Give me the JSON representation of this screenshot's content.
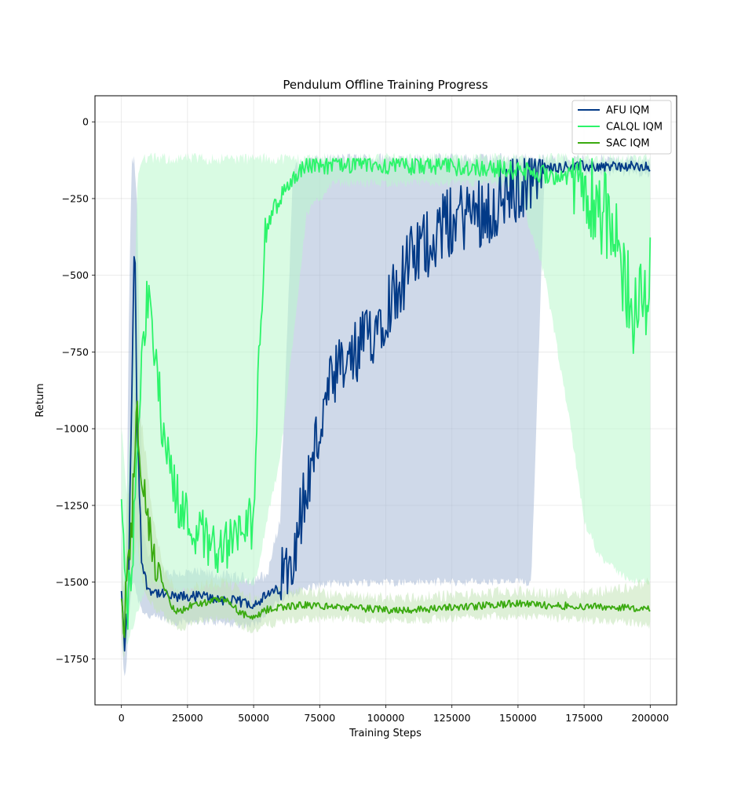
{
  "chart_data": {
    "type": "line",
    "title": "Pendulum Offline Training Progress",
    "xlabel": "Training Steps",
    "ylabel": "Return",
    "xlim": [
      -10000,
      210000
    ],
    "ylim": [
      -1900,
      85
    ],
    "xticks": [
      0,
      25000,
      50000,
      75000,
      100000,
      125000,
      150000,
      175000,
      200000
    ],
    "yticks": [
      0,
      -250,
      -500,
      -750,
      -1000,
      -1250,
      -1500,
      -1750
    ],
    "ytick_labels": [
      "0",
      "−250",
      "−500",
      "−750",
      "−1000",
      "−1250",
      "−1500",
      "−1750"
    ],
    "grid": true,
    "legend_position": "top-right",
    "series": [
      {
        "name": "AFU IQM",
        "color": "#023a87",
        "band_color": "#9fb4d4",
        "x": [
          0,
          1000,
          2000,
          3000,
          4000,
          5000,
          6000,
          8000,
          10000,
          15000,
          20000,
          30000,
          40000,
          50000,
          55000,
          60000,
          65000,
          70000,
          75000,
          80000,
          90000,
          100000,
          110000,
          120000,
          130000,
          140000,
          150000,
          155000,
          160000,
          170000,
          180000,
          190000,
          200000
        ],
        "y": [
          -1550,
          -1710,
          -1650,
          -1400,
          -800,
          -400,
          -1000,
          -1450,
          -1520,
          -1540,
          -1550,
          -1545,
          -1560,
          -1570,
          -1545,
          -1520,
          -1380,
          -1200,
          -1000,
          -850,
          -750,
          -600,
          -450,
          -350,
          -300,
          -280,
          -220,
          -160,
          -150,
          -145,
          -145,
          -145,
          -150
        ],
        "band_low": [
          -1650,
          -1830,
          -1750,
          -1600,
          -1500,
          -1500,
          -1550,
          -1590,
          -1610,
          -1620,
          -1630,
          -1625,
          -1635,
          -1640,
          -1600,
          -1560,
          -1540,
          -1520,
          -1510,
          -1505,
          -1500,
          -1500,
          -1500,
          -1500,
          -1500,
          -1500,
          -1500,
          -1500,
          -170,
          -165,
          -165,
          -165,
          -170
        ],
        "band_high": [
          -1350,
          -1550,
          -1300,
          -500,
          -130,
          -130,
          -300,
          -1300,
          -1420,
          -1460,
          -1470,
          -1470,
          -1480,
          -1490,
          -1480,
          -1300,
          -150,
          -130,
          -125,
          -120,
          -120,
          -120,
          -120,
          -120,
          -120,
          -120,
          -120,
          -120,
          -125,
          -125,
          -125,
          -125,
          -125
        ]
      },
      {
        "name": "CALQL IQM",
        "color": "#2cf46a",
        "band_color": "#b9f7cc",
        "x": [
          0,
          2000,
          4000,
          6000,
          8000,
          10000,
          12000,
          15000,
          20000,
          25000,
          30000,
          35000,
          40000,
          45000,
          50000,
          52000,
          55000,
          60000,
          65000,
          70000,
          80000,
          90000,
          100000,
          120000,
          140000,
          150000,
          160000,
          170000,
          175000,
          180000,
          185000,
          190000,
          195000,
          200000
        ],
        "y": [
          -1220,
          -1580,
          -1500,
          -1000,
          -700,
          -580,
          -700,
          -950,
          -1200,
          -1300,
          -1340,
          -1380,
          -1380,
          -1340,
          -1300,
          -700,
          -330,
          -250,
          -180,
          -140,
          -140,
          -140,
          -140,
          -145,
          -150,
          -160,
          -170,
          -180,
          -200,
          -250,
          -350,
          -500,
          -650,
          -500
        ],
        "band_low": [
          -1450,
          -1700,
          -1650,
          -1600,
          -1550,
          -1500,
          -1500,
          -1520,
          -1530,
          -1530,
          -1520,
          -1520,
          -1510,
          -1500,
          -1500,
          -1450,
          -1300,
          -1100,
          -700,
          -300,
          -200,
          -200,
          -200,
          -200,
          -200,
          -220,
          -500,
          -1000,
          -1300,
          -1400,
          -1450,
          -1480,
          -1500,
          -1500
        ],
        "band_high": [
          -1000,
          -1200,
          -900,
          -200,
          -120,
          -120,
          -120,
          -120,
          -120,
          -120,
          -120,
          -120,
          -120,
          -120,
          -120,
          -120,
          -120,
          -120,
          -120,
          -120,
          -120,
          -120,
          -120,
          -120,
          -120,
          -120,
          -120,
          -120,
          -120,
          -120,
          -120,
          -120,
          -120,
          -120
        ]
      },
      {
        "name": "SAC IQM",
        "color": "#3aaa0f",
        "band_color": "#c2e3b6",
        "x": [
          0,
          1000,
          2000,
          3000,
          4000,
          5000,
          6000,
          7000,
          8000,
          10000,
          12000,
          15000,
          18000,
          20000,
          22000,
          25000,
          30000,
          35000,
          40000,
          45000,
          50000,
          55000,
          60000,
          70000,
          80000,
          90000,
          100000,
          110000,
          120000,
          130000,
          140000,
          150000,
          160000,
          170000,
          180000,
          190000,
          200000
        ],
        "y": [
          -1550,
          -1680,
          -1450,
          -1420,
          -1300,
          -1050,
          -960,
          -1100,
          -1150,
          -1300,
          -1420,
          -1500,
          -1560,
          -1590,
          -1600,
          -1580,
          -1570,
          -1560,
          -1560,
          -1600,
          -1620,
          -1590,
          -1580,
          -1575,
          -1580,
          -1585,
          -1590,
          -1590,
          -1585,
          -1580,
          -1575,
          -1570,
          -1575,
          -1578,
          -1580,
          -1582,
          -1590
        ],
        "band_low": [
          -1650,
          -1780,
          -1600,
          -1550,
          -1500,
          -1400,
          -1350,
          -1450,
          -1500,
          -1550,
          -1580,
          -1600,
          -1630,
          -1640,
          -1650,
          -1640,
          -1630,
          -1620,
          -1620,
          -1640,
          -1660,
          -1640,
          -1630,
          -1620,
          -1620,
          -1620,
          -1625,
          -1625,
          -1620,
          -1615,
          -1610,
          -1610,
          -1615,
          -1620,
          -1625,
          -1630,
          -1640
        ],
        "band_high": [
          -1400,
          -1550,
          -1250,
          -1200,
          -1100,
          -900,
          -880,
          -950,
          -1000,
          -1150,
          -1300,
          -1420,
          -1490,
          -1520,
          -1530,
          -1520,
          -1510,
          -1500,
          -1500,
          -1530,
          -1560,
          -1540,
          -1530,
          -1530,
          -1540,
          -1545,
          -1550,
          -1550,
          -1545,
          -1540,
          -1535,
          -1530,
          -1535,
          -1535,
          -1530,
          -1520,
          -1500
        ]
      }
    ]
  }
}
